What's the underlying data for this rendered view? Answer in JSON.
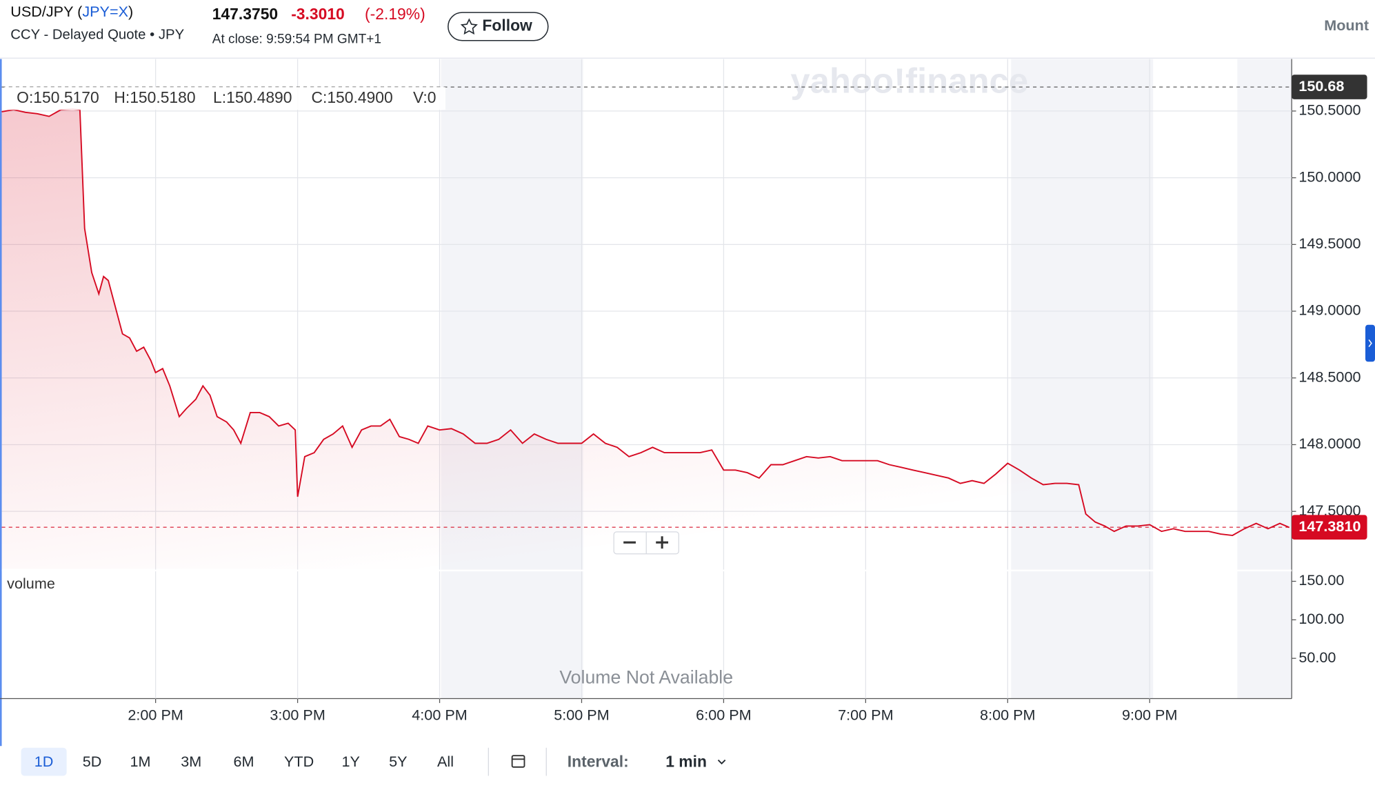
{
  "header": {
    "title": "USD/JPY (",
    "symbol": "JPY=X",
    "title_suffix": ")",
    "subtitle": "CCY - Delayed Quote • JPY",
    "price": "147.3750",
    "change": "-3.3010",
    "change_percent": "(-2.19%)",
    "close_time": "At close: 9:59:54 PM GMT+1",
    "follow": "Follow",
    "right_label": "Mount"
  },
  "ohlc": [
    "O:150.5170",
    "H:150.5180",
    "L:150.4890",
    "C:150.4900",
    "V:0"
  ],
  "watermark": "yahoo!finance",
  "chart_data": {
    "type": "line",
    "color": "#d60a22",
    "x": [
      775,
      780,
      785,
      790,
      795,
      800,
      805,
      808,
      810,
      813,
      816,
      818,
      820,
      823,
      826,
      829,
      832,
      835,
      838,
      840,
      843,
      846,
      850,
      853,
      857,
      860,
      863,
      866,
      870,
      873,
      876,
      880,
      884,
      888,
      892,
      896,
      899,
      900,
      903,
      907,
      911,
      915,
      919,
      923,
      927,
      931,
      935,
      939,
      943,
      947,
      951,
      955,
      960,
      965,
      970,
      975,
      980,
      985,
      990,
      995,
      1000,
      1005,
      1010,
      1015,
      1020,
      1025,
      1030,
      1035,
      1040,
      1045,
      1050,
      1055,
      1060,
      1065,
      1070,
      1075,
      1080,
      1085,
      1090,
      1095,
      1100,
      1105,
      1110,
      1115,
      1120,
      1125,
      1130,
      1135,
      1140,
      1145,
      1150,
      1155,
      1160,
      1165,
      1170,
      1175,
      1180,
      1185,
      1190,
      1195,
      1200,
      1205,
      1210,
      1215,
      1220,
      1225,
      1230,
      1233,
      1237,
      1241,
      1245,
      1250,
      1255,
      1260,
      1265,
      1270,
      1275,
      1280,
      1285,
      1290,
      1295,
      1300,
      1305,
      1310,
      1315,
      1319
    ],
    "values": [
      150.495,
      150.51,
      150.49,
      150.48,
      150.46,
      150.51,
      150.515,
      150.51,
      149.62,
      149.29,
      149.13,
      149.26,
      149.23,
      149.03,
      148.83,
      148.8,
      148.7,
      148.73,
      148.63,
      148.54,
      148.57,
      148.44,
      148.21,
      148.27,
      148.34,
      148.44,
      148.37,
      148.21,
      148.17,
      148.11,
      148.01,
      148.24,
      148.24,
      148.21,
      148.14,
      148.16,
      148.11,
      147.61,
      147.91,
      147.94,
      148.04,
      148.08,
      148.14,
      147.98,
      148.11,
      148.14,
      148.14,
      148.19,
      148.06,
      148.04,
      148.01,
      148.14,
      148.11,
      148.12,
      148.08,
      148.01,
      148.01,
      148.04,
      148.11,
      148.01,
      148.08,
      148.04,
      148.01,
      148.01,
      148.01,
      148.08,
      148.01,
      147.98,
      147.91,
      147.94,
      147.98,
      147.94,
      147.94,
      147.94,
      147.94,
      147.96,
      147.81,
      147.81,
      147.79,
      147.75,
      147.85,
      147.85,
      147.88,
      147.91,
      147.9,
      147.91,
      147.88,
      147.88,
      147.88,
      147.88,
      147.85,
      147.83,
      147.81,
      147.79,
      147.77,
      147.75,
      147.71,
      147.73,
      147.71,
      147.78,
      147.86,
      147.81,
      147.75,
      147.7,
      147.71,
      147.71,
      147.7,
      147.48,
      147.42,
      147.39,
      147.35,
      147.39,
      147.39,
      147.4,
      147.35,
      147.37,
      147.35,
      147.35,
      147.35,
      147.33,
      147.32,
      147.37,
      147.41,
      147.37,
      147.41,
      147.38
    ],
    "xlim": [
      775,
      1320
    ],
    "xticks": [
      {
        "value": 840,
        "label": "2:00 PM"
      },
      {
        "value": 900,
        "label": "3:00 PM"
      },
      {
        "value": 960,
        "label": "4:00 PM"
      },
      {
        "value": 1020,
        "label": "5:00 PM"
      },
      {
        "value": 1080,
        "label": "6:00 PM"
      },
      {
        "value": 1140,
        "label": "7:00 PM"
      },
      {
        "value": 1200,
        "label": "8:00 PM"
      },
      {
        "value": 1260,
        "label": "9:00 PM"
      }
    ],
    "ylim": [
      147.07,
      150.89
    ],
    "yticks": [
      {
        "value": 147.5,
        "label": "147.5000"
      },
      {
        "value": 148,
        "label": "148.0000"
      },
      {
        "value": 148.5,
        "label": "148.5000"
      },
      {
        "value": 149,
        "label": "149.0000"
      },
      {
        "value": 149.5,
        "label": "149.5000"
      },
      {
        "value": 150,
        "label": "150.0000"
      },
      {
        "value": 150.5,
        "label": "150.5000"
      }
    ],
    "grid": true,
    "reference_lines": [
      {
        "value": 150.68,
        "label": "150.68",
        "color": "#333333"
      },
      {
        "value": 147.381,
        "label": "147.3810",
        "color": "#d60a22"
      }
    ],
    "volume": {
      "title": "volume",
      "note": "Volume Not Available",
      "ylim": [
        0,
        164
      ],
      "yticks": [
        {
          "value": 50,
          "label": "50.00"
        },
        {
          "value": 100,
          "label": "100.00"
        },
        {
          "value": 150,
          "label": "150.00"
        }
      ]
    }
  },
  "toolbar": {
    "ranges": [
      "1D",
      "5D",
      "1M",
      "3M",
      "6M",
      "YTD",
      "1Y",
      "5Y",
      "All"
    ],
    "interval_label": "Interval:",
    "interval": "1 min"
  }
}
